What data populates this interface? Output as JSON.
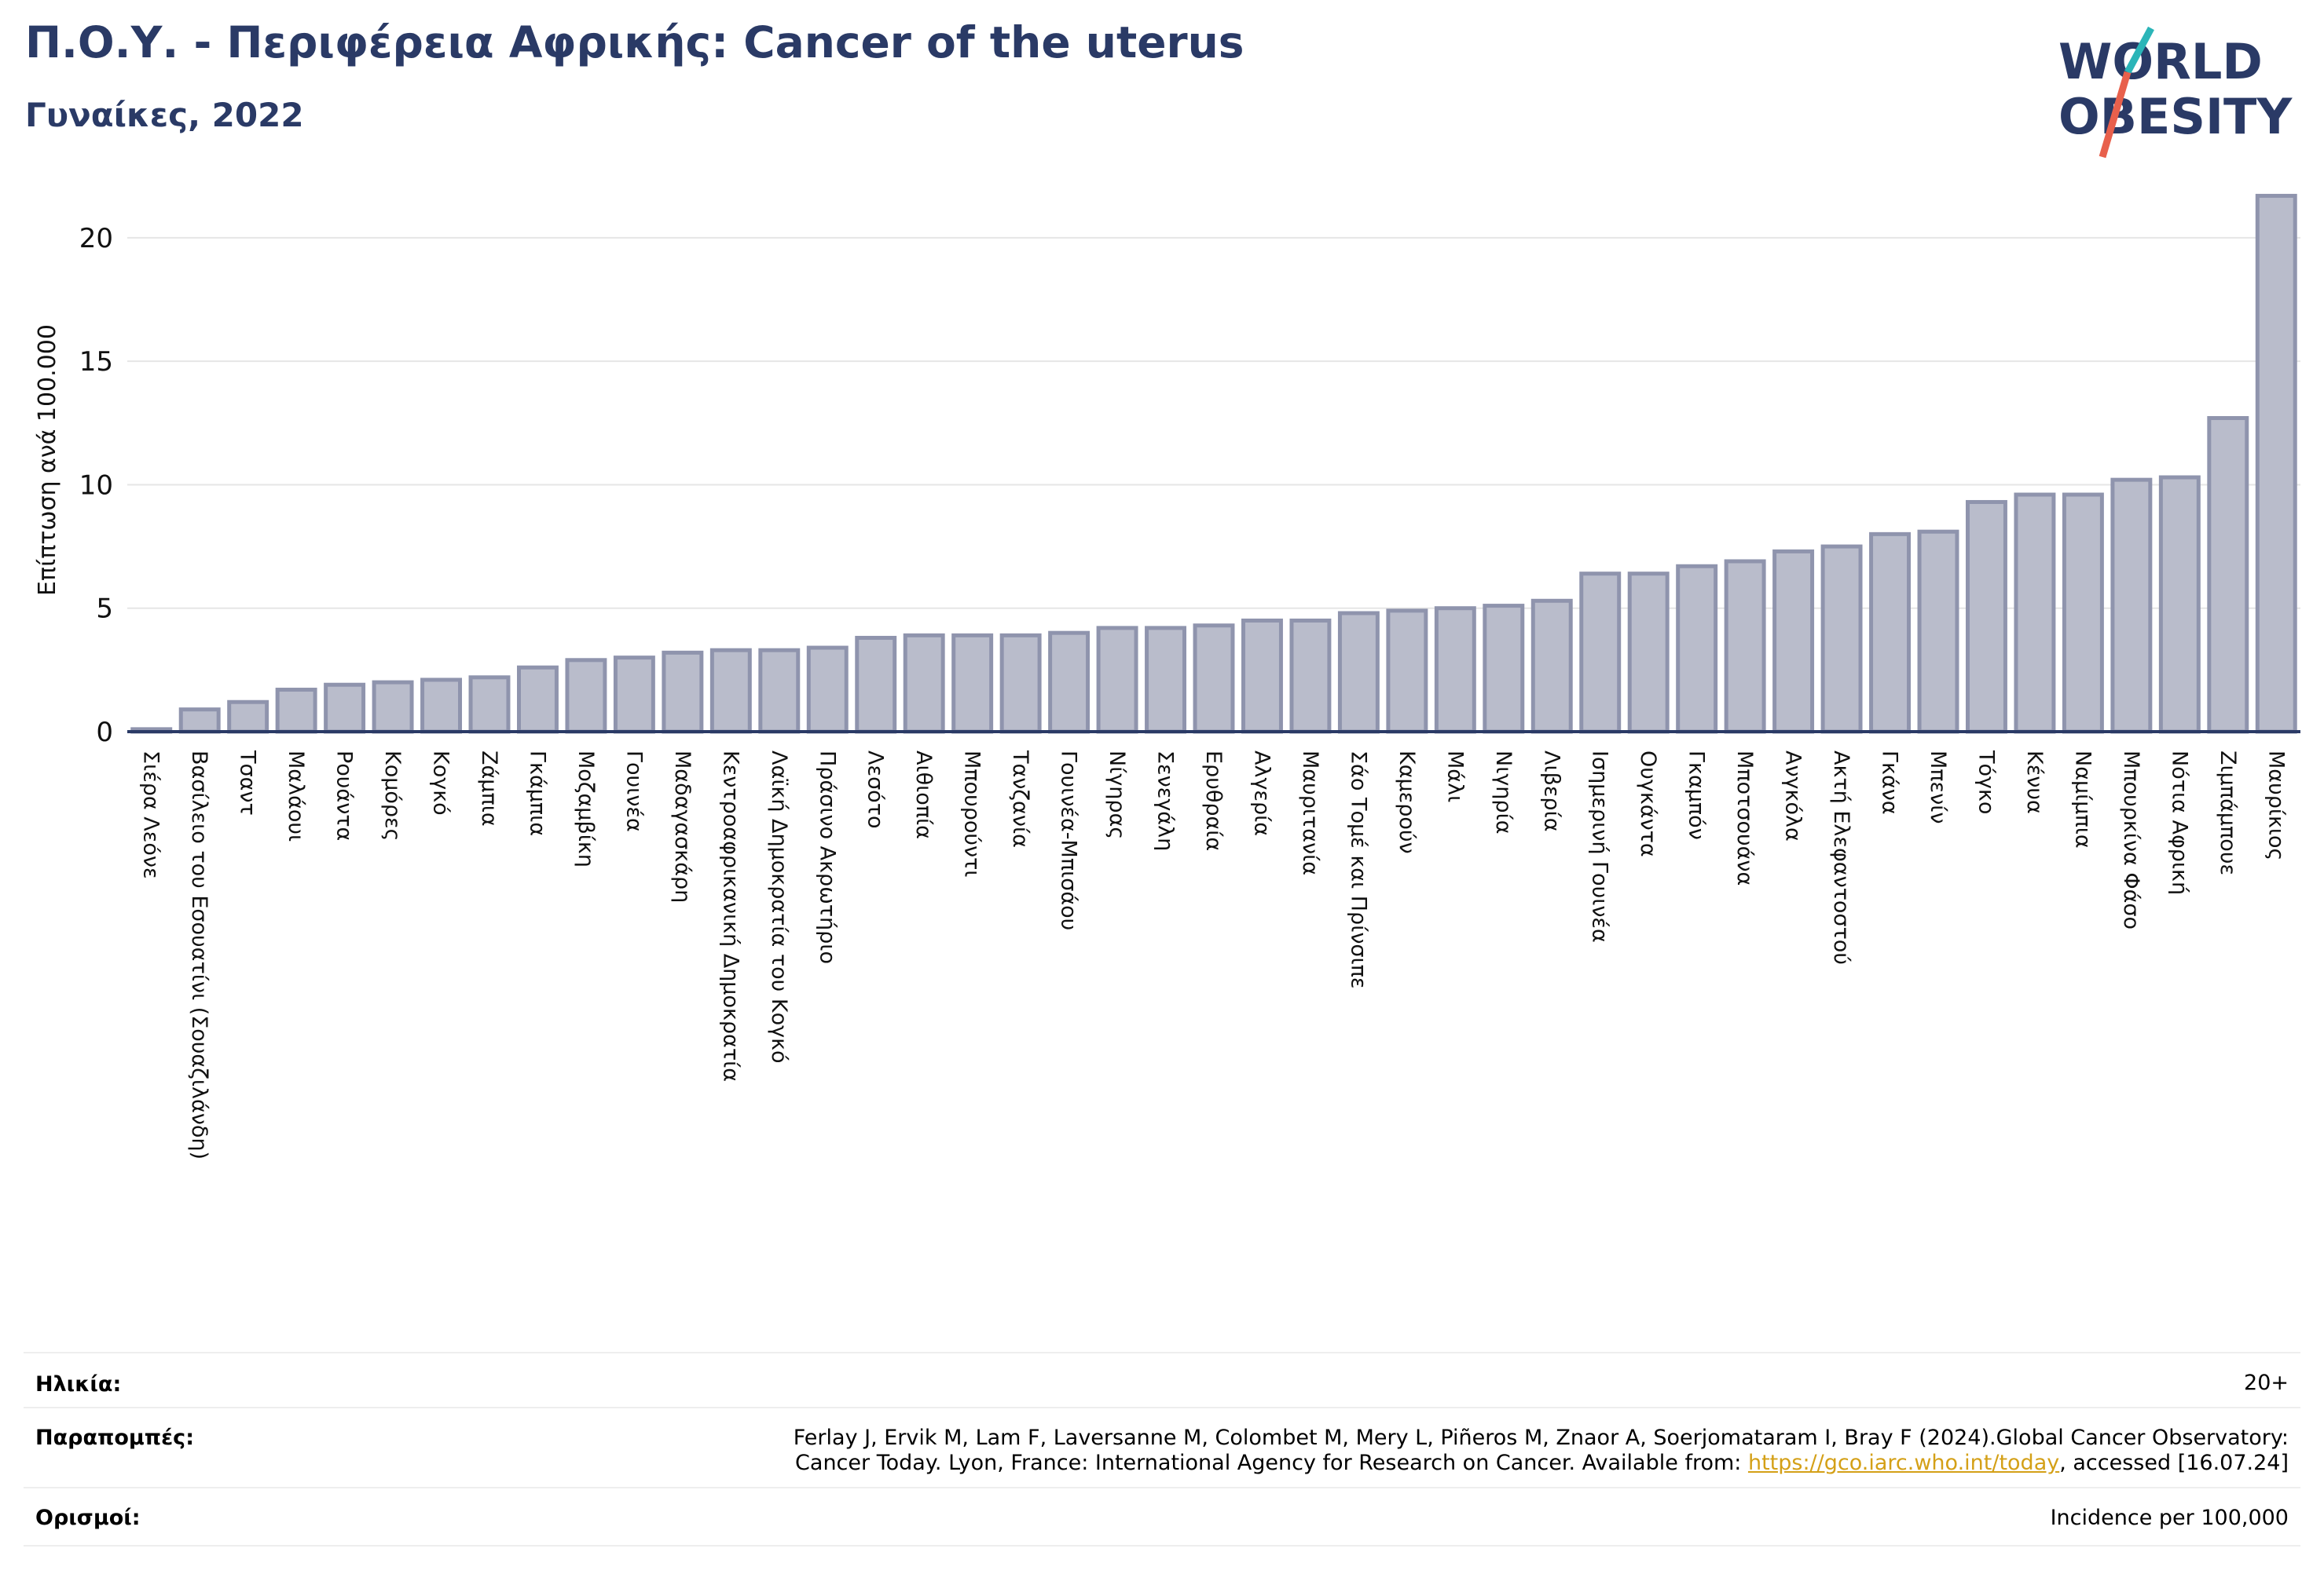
{
  "header": {
    "title": "Π.Ο.Υ. - Περιφέρεια Αφρικής: Cancer of the uterus",
    "subtitle": "Γυναίκες, 2022"
  },
  "logo": {
    "line1": "WORLD",
    "line2": "OBESITY",
    "colors": {
      "text": "#2a3a66",
      "slash_teal": "#2bb5b8",
      "slash_red": "#e8604c"
    }
  },
  "chart_data": {
    "type": "bar",
    "ylabel": "Επίπτωση ανά 100.000",
    "ylim": [
      0,
      22
    ],
    "yticks": [
      0,
      5,
      10,
      15,
      20
    ],
    "grid": true,
    "bar_color": "#b9bccb",
    "bar_edge_color": "#8f94ad",
    "categories": [
      "Σιέρα Λεόνε",
      "Βασίλειο του Εσουατίνι (Σουαζιλάνδη)",
      "Τσαντ",
      "Μαλάουι",
      "Ρουάντα",
      "Κομόρες",
      "Κογκό",
      "Ζάμπια",
      "Γκάμπια",
      "Μοζαμβίκη",
      "Γουινέα",
      "Μαδαγασκάρη",
      "Κεντροαφρικανική Δημοκρατία",
      "Λαϊκή Δημοκρατία του Κογκό",
      "Πράσινο Ακρωτήριο",
      "Λεσότο",
      "Αιθιοπία",
      "Μπουρούντι",
      "Τανζανία",
      "Γουινέα-Μπισάου",
      "Νίγηρας",
      "Σενεγάλη",
      "Ερυθραία",
      "Αλγερία",
      "Μαυριτανία",
      "Σάο Τομέ και Πρίνσιπε",
      "Καμερούν",
      "Μάλι",
      "Νιγηρία",
      "Λιβερία",
      "Ισημερινή Γουινέα",
      "Ουγκάντα",
      "Γκαμπόν",
      "Μποτσουάνα",
      "Ανγκόλα",
      "Ακτή Ελεφαντοστού",
      "Γκάνα",
      "Μπενίν",
      "Τόγκο",
      "Κένυα",
      "Ναμίμπια",
      "Μπουρκίνα Φάσο",
      "Νότια Αφρική",
      "Ζιμπάμπουε",
      "Μαυρίκιος"
    ],
    "values": [
      0.1,
      0.9,
      1.2,
      1.7,
      1.9,
      2.0,
      2.1,
      2.2,
      2.6,
      2.9,
      3.0,
      3.2,
      3.3,
      3.3,
      3.4,
      3.8,
      3.9,
      3.9,
      3.9,
      4.0,
      4.2,
      4.2,
      4.3,
      4.5,
      4.5,
      4.8,
      4.9,
      5.0,
      5.1,
      5.3,
      6.4,
      6.4,
      6.7,
      6.9,
      7.3,
      7.5,
      8.0,
      8.1,
      9.3,
      9.6,
      9.6,
      10.2,
      10.3,
      12.7,
      21.7
    ]
  },
  "footer": {
    "age_label": "Ηλικία:",
    "age_value": "20+",
    "refs_label": "Παραπομπές:",
    "refs_line1": "Ferlay J, Ervik M, Lam F, Laversanne M, Colombet M, Mery L, Piñeros M, Znaor A, Soerjomataram I, Bray F (2024).Global Cancer Observatory:",
    "refs_line2_pre": "Cancer Today. Lyon, France: International Agency for Research on Cancer. Available from: ",
    "refs_link": "https://gco.iarc.who.int/today",
    "refs_line2_post": ", accessed [16.07.24]",
    "defs_label": "Ορισμοί:",
    "defs_value": "Incidence per 100,000"
  }
}
